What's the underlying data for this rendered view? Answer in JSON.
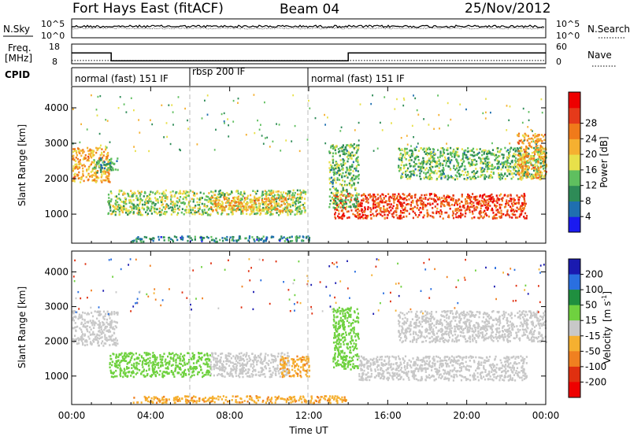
{
  "header": {
    "station": "Fort Hays East (fitACF)",
    "beam": "Beam 04",
    "date": "25/Nov/2012"
  },
  "noise_panel": {
    "left_label": "N.Sky",
    "left_ticks": [
      "10^5",
      "10^0"
    ],
    "right_label": "N.Search",
    "right_ticks": [
      "10^5",
      "10^0"
    ]
  },
  "freq_panel": {
    "left_label_1": "Freq.",
    "left_label_2": "[MHz]",
    "left_ticks": [
      "18",
      "8"
    ],
    "right_label": "Nave",
    "right_ticks": [
      "60",
      "0"
    ]
  },
  "cpid_panel": {
    "label": "CPID",
    "segments": [
      "normal (fast) 151 IF",
      "rbsp 200 IF",
      "normal (fast) 151 IF"
    ]
  },
  "time_axis": {
    "label": "Time UT",
    "ticks": [
      "00:00",
      "04:00",
      "08:00",
      "12:00",
      "16:00",
      "20:00",
      "00:00"
    ]
  },
  "range_axis": {
    "label": "Slant Range [km]",
    "ticks": [
      "1000",
      "2000",
      "3000",
      "4000"
    ]
  },
  "power_colorbar": {
    "label": "Power [dB]",
    "ticks": [
      "4",
      "8",
      "12",
      "16",
      "20",
      "24",
      "28"
    ],
    "colors": [
      "#1a1af0",
      "#1f6fb0",
      "#2e8b57",
      "#5fbf5f",
      "#e8e04a",
      "#f5b030",
      "#f07a1a",
      "#e53a1a",
      "#ee0000"
    ]
  },
  "velocity_colorbar": {
    "label_1": "Velocity",
    "label_2": "[m s",
    "label_sup": "-1",
    "label_3": "]",
    "ticks": [
      "200",
      "100",
      "50",
      "15",
      "-15",
      "-50",
      "-100",
      "-200"
    ],
    "colors": [
      "#1a1ab0",
      "#2a6fe0",
      "#1f8f3f",
      "#6fd13f",
      "#c8c8c8",
      "#f5b030",
      "#f08020",
      "#e03010",
      "#ee0000"
    ]
  },
  "chart_data": {
    "type": "heatmap",
    "title": "Fort Hays East (fitACF)",
    "xlabel": "Time UT",
    "ylabel": "Slant Range [km]",
    "xlim_hours": [
      0,
      24
    ],
    "ylim_km": [
      180,
      4600
    ],
    "frequency_mhz": [
      {
        "start": 0,
        "end": 2,
        "value": 13.5
      },
      {
        "start": 2,
        "end": 14,
        "value": 9.5
      },
      {
        "start": 14,
        "end": 24,
        "value": 13.5
      }
    ],
    "nave_level": 10,
    "cpid_boundaries_hours": [
      6,
      12
    ],
    "power_echo_regions": [
      {
        "t0": 0.0,
        "t1": 1.9,
        "r0": 1900,
        "r1": 2900,
        "dB": 20
      },
      {
        "t0": 1.0,
        "t1": 2.3,
        "r0": 2200,
        "r1": 2600,
        "dB": 10
      },
      {
        "t0": 1.8,
        "t1": 11.8,
        "r0": 1000,
        "r1": 1700,
        "dB": 14
      },
      {
        "t0": 7.0,
        "t1": 11.0,
        "r0": 1100,
        "r1": 1500,
        "dB": 20
      },
      {
        "t0": 3.0,
        "t1": 12.0,
        "r0": 250,
        "r1": 400,
        "dB": 8
      },
      {
        "t0": 13.2,
        "t1": 23.0,
        "r0": 900,
        "r1": 1600,
        "dB": 26
      },
      {
        "t0": 13.0,
        "t1": 14.5,
        "r0": 1200,
        "r1": 3000,
        "dB": 12
      },
      {
        "t0": 16.5,
        "t1": 24.0,
        "r0": 2000,
        "r1": 2900,
        "dB": 12
      },
      {
        "t0": 22.5,
        "t1": 24.0,
        "r0": 2000,
        "r1": 3300,
        "dB": 20
      }
    ],
    "velocity_echo_regions": [
      {
        "t0": 0.0,
        "t1": 2.3,
        "r0": 1900,
        "r1": 2900,
        "v": 0
      },
      {
        "t0": 1.8,
        "t1": 7.0,
        "r0": 1000,
        "r1": 1700,
        "v": 40
      },
      {
        "t0": 7.0,
        "t1": 11.0,
        "r0": 1000,
        "r1": 1700,
        "v": 0
      },
      {
        "t0": 10.5,
        "t1": 12.0,
        "r0": 1000,
        "r1": 1600,
        "v": -40
      },
      {
        "t0": 3.0,
        "t1": 14.0,
        "r0": 250,
        "r1": 450,
        "v": -40
      },
      {
        "t0": 13.2,
        "t1": 14.5,
        "r0": 1200,
        "r1": 3000,
        "v": 40
      },
      {
        "t0": 14.5,
        "t1": 23.0,
        "r0": 900,
        "r1": 1600,
        "v": 0
      },
      {
        "t0": 16.5,
        "t1": 24.0,
        "r0": 2000,
        "r1": 2900,
        "v": 0
      }
    ]
  }
}
